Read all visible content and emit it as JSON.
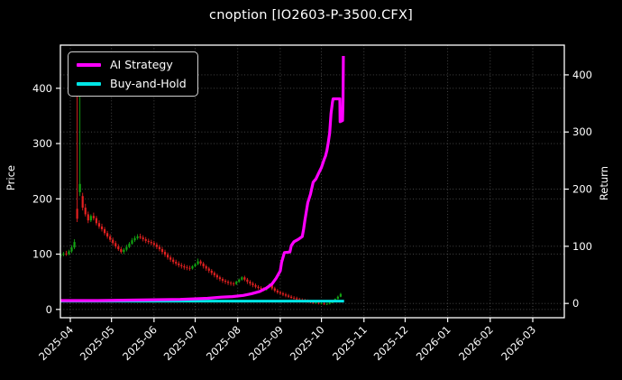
{
  "title": "cnoption [IO2603-P-3500.CFX]",
  "legend": {
    "items": [
      {
        "label": "AI Strategy",
        "color": "#ff00ff"
      },
      {
        "label": "Buy-and-Hold",
        "color": "#00e5e5"
      }
    ]
  },
  "axes": {
    "left": {
      "label": "Price",
      "tick_labels": [
        "0",
        "100",
        "200",
        "300",
        "400"
      ]
    },
    "right": {
      "label": "Return",
      "tick_labels": [
        "0",
        "100",
        "200",
        "300",
        "400"
      ]
    },
    "x": {
      "tick_labels": [
        "2025-04",
        "2025-05",
        "2025-06",
        "2025-07",
        "2025-08",
        "2025-09",
        "2025-10",
        "2025-11",
        "2025-12",
        "2026-01",
        "2026-02",
        "2026-03"
      ]
    }
  },
  "chart_data": {
    "type": "candlestick",
    "title": "cnoption [IO2603-P-3500.CFX]",
    "background": "#000000",
    "foreground": "#ffffff",
    "grid": {
      "show": true,
      "style": "dotted",
      "color": "#9a9a9a"
    },
    "x_axis": {
      "unit": "days since 2025-04-01",
      "tick_labels": [
        "2025-04",
        "2025-05",
        "2025-06",
        "2025-07",
        "2025-08",
        "2025-09",
        "2025-10",
        "2025-11",
        "2025-12",
        "2026-01",
        "2026-02",
        "2026-03"
      ],
      "tick_days": [
        0,
        30,
        61,
        91,
        122,
        153,
        183,
        214,
        244,
        275,
        306,
        337
      ],
      "range_days": [
        -7.2,
        360
      ]
    },
    "price_axis": {
      "label": "Price",
      "ticks": [
        0,
        100,
        200,
        300,
        400
      ],
      "range": [
        -15,
        478
      ]
    },
    "return_axis": {
      "label": "Return",
      "ticks": [
        0,
        100,
        200,
        300,
        400
      ],
      "range": [
        -25,
        452
      ]
    },
    "candles": {
      "columns": [
        "day",
        "open",
        "high",
        "low",
        "close"
      ],
      "up_color": "#12a412",
      "down_color": "#e32020",
      "rows": [
        [
          -7,
          97,
          102,
          93,
          99
        ],
        [
          -5,
          99,
          104,
          96,
          101
        ],
        [
          -3,
          101,
          106,
          97,
          100
        ],
        [
          -1,
          100,
          108,
          98,
          105
        ],
        [
          1,
          105,
          116,
          102,
          112
        ],
        [
          3,
          112,
          127,
          109,
          122
        ],
        [
          5,
          182,
          395,
          158,
          164
        ],
        [
          7,
          212,
          388,
          205,
          227
        ],
        [
          9,
          205,
          211,
          179,
          184
        ],
        [
          11,
          184,
          191,
          168,
          172
        ],
        [
          13,
          172,
          177,
          156,
          161
        ],
        [
          15,
          161,
          172,
          158,
          169
        ],
        [
          17,
          169,
          175,
          161,
          165
        ],
        [
          19,
          165,
          169,
          152,
          156
        ],
        [
          21,
          156,
          161,
          146,
          150
        ],
        [
          23,
          150,
          155,
          141,
          145
        ],
        [
          25,
          145,
          149,
          134,
          138
        ],
        [
          27,
          138,
          142,
          128,
          132
        ],
        [
          29,
          132,
          136,
          122,
          126
        ],
        [
          31,
          126,
          130,
          116,
          120
        ],
        [
          33,
          120,
          124,
          110,
          114
        ],
        [
          35,
          114,
          118,
          106,
          109
        ],
        [
          37,
          109,
          113,
          101,
          104
        ],
        [
          39,
          104,
          111,
          100,
          108
        ],
        [
          41,
          108,
          117,
          105,
          113
        ],
        [
          43,
          113,
          122,
          111,
          119
        ],
        [
          45,
          119,
          129,
          117,
          125
        ],
        [
          47,
          125,
          133,
          122,
          129
        ],
        [
          49,
          129,
          136,
          126,
          132
        ],
        [
          51,
          132,
          137,
          127,
          130
        ],
        [
          53,
          130,
          134,
          123,
          127
        ],
        [
          55,
          127,
          131,
          120,
          124
        ],
        [
          57,
          124,
          128,
          118,
          122
        ],
        [
          59,
          122,
          126,
          116,
          120
        ],
        [
          61,
          120,
          124,
          113,
          117
        ],
        [
          63,
          117,
          121,
          109,
          113
        ],
        [
          65,
          113,
          117,
          105,
          109
        ],
        [
          67,
          109,
          113,
          100,
          104
        ],
        [
          69,
          104,
          108,
          95,
          99
        ],
        [
          71,
          99,
          103,
          90,
          94
        ],
        [
          73,
          94,
          98,
          86,
          90
        ],
        [
          75,
          90,
          94,
          82,
          86
        ],
        [
          77,
          86,
          90,
          79,
          83
        ],
        [
          79,
          83,
          87,
          76,
          80
        ],
        [
          81,
          80,
          84,
          74,
          78
        ],
        [
          83,
          78,
          82,
          72,
          76
        ],
        [
          85,
          76,
          80,
          71,
          75
        ],
        [
          87,
          75,
          79,
          70,
          74
        ],
        [
          89,
          74,
          80,
          72,
          78
        ],
        [
          91,
          78,
          84,
          76,
          82
        ],
        [
          93,
          82,
          92,
          80,
          87
        ],
        [
          95,
          87,
          90,
          79,
          83
        ],
        [
          97,
          83,
          86,
          74,
          78
        ],
        [
          99,
          78,
          81,
          70,
          74
        ],
        [
          101,
          74,
          77,
          66,
          70
        ],
        [
          103,
          70,
          73,
          62,
          66
        ],
        [
          105,
          66,
          69,
          58,
          62
        ],
        [
          107,
          62,
          65,
          54,
          58
        ],
        [
          109,
          58,
          61,
          51,
          55
        ],
        [
          111,
          55,
          58,
          48,
          52
        ],
        [
          113,
          52,
          55,
          46,
          50
        ],
        [
          115,
          50,
          53,
          44,
          48
        ],
        [
          117,
          48,
          51,
          43,
          47
        ],
        [
          119,
          47,
          50,
          42,
          46
        ],
        [
          121,
          46,
          52,
          44,
          50
        ],
        [
          123,
          50,
          56,
          48,
          54
        ],
        [
          125,
          54,
          60,
          52,
          58
        ],
        [
          127,
          58,
          61,
          51,
          54
        ],
        [
          129,
          54,
          57,
          46,
          50
        ],
        [
          131,
          50,
          53,
          43,
          47
        ],
        [
          133,
          47,
          50,
          40,
          44
        ],
        [
          135,
          44,
          47,
          38,
          41
        ],
        [
          137,
          41,
          44,
          36,
          39
        ],
        [
          139,
          39,
          42,
          34,
          37
        ],
        [
          141,
          37,
          40,
          33,
          36
        ],
        [
          143,
          36,
          42,
          34,
          40
        ],
        [
          145,
          40,
          47,
          38,
          44
        ],
        [
          147,
          44,
          46,
          35,
          38
        ],
        [
          149,
          38,
          41,
          31,
          34
        ],
        [
          151,
          34,
          37,
          28,
          31
        ],
        [
          153,
          31,
          34,
          26,
          29
        ],
        [
          155,
          29,
          32,
          24,
          27
        ],
        [
          157,
          27,
          30,
          22,
          25
        ],
        [
          159,
          25,
          28,
          21,
          23
        ],
        [
          161,
          23,
          26,
          19,
          21
        ],
        [
          163,
          21,
          24,
          18,
          20
        ],
        [
          165,
          20,
          23,
          16,
          18
        ],
        [
          167,
          18,
          21,
          15,
          17
        ],
        [
          169,
          17,
          20,
          14,
          16
        ],
        [
          171,
          16,
          19,
          13,
          15
        ],
        [
          173,
          15,
          18,
          12,
          14
        ],
        [
          175,
          14,
          17,
          11,
          13
        ],
        [
          177,
          13,
          16,
          10,
          12
        ],
        [
          179,
          12,
          15,
          10,
          12
        ],
        [
          181,
          12,
          14,
          9,
          11
        ],
        [
          183,
          11,
          13,
          9,
          11
        ],
        [
          185,
          11,
          13,
          8,
          10
        ],
        [
          187,
          10,
          12,
          8,
          10
        ],
        [
          189,
          10,
          13,
          9,
          12
        ],
        [
          191,
          12,
          16,
          11,
          15
        ],
        [
          193,
          15,
          20,
          14,
          19
        ],
        [
          195,
          19,
          25,
          18,
          23
        ],
        [
          197,
          23,
          30,
          22,
          28
        ]
      ]
    },
    "series": [
      {
        "name": "AI Strategy",
        "axis": "return",
        "color": "#ff00ff",
        "width": 3.2,
        "points": [
          [
            -7,
            5
          ],
          [
            20,
            5
          ],
          [
            50,
            6
          ],
          [
            80,
            7
          ],
          [
            100,
            9
          ],
          [
            110,
            11
          ],
          [
            118,
            12
          ],
          [
            126,
            14
          ],
          [
            132,
            17
          ],
          [
            138,
            21
          ],
          [
            143,
            27
          ],
          [
            147,
            34
          ],
          [
            150,
            44
          ],
          [
            153,
            57
          ],
          [
            154,
            72
          ],
          [
            156,
            89
          ],
          [
            160,
            90
          ],
          [
            161,
            101
          ],
          [
            163,
            108
          ],
          [
            166,
            112
          ],
          [
            169,
            117
          ],
          [
            170,
            130
          ],
          [
            171,
            146
          ],
          [
            173,
            176
          ],
          [
            175,
            191
          ],
          [
            177,
            212
          ],
          [
            179,
            218
          ],
          [
            181,
            228
          ],
          [
            183,
            238
          ],
          [
            185,
            252
          ],
          [
            186,
            258
          ],
          [
            187,
            268
          ],
          [
            188,
            282
          ],
          [
            189,
            298
          ],
          [
            190,
            332
          ],
          [
            191,
            352
          ],
          [
            191.5,
            358
          ],
          [
            196.4,
            358
          ],
          [
            196.6,
            318
          ],
          [
            198.4,
            320
          ],
          [
            198.7,
            355
          ],
          [
            199,
            433
          ]
        ]
      },
      {
        "name": "Buy-and-Hold",
        "axis": "return",
        "color": "#00e5e5",
        "width": 3,
        "points": [
          [
            -7,
            4
          ],
          [
            199.5,
            4
          ]
        ]
      }
    ]
  }
}
